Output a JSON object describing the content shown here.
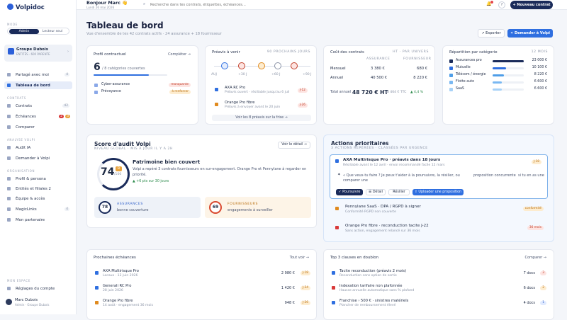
{
  "app": {
    "name": "Volpidoc"
  },
  "sidebar": {
    "mode_label": "MODE",
    "mode_admin": "Admin",
    "mode_reader": "Lecteur seul",
    "group": {
      "name": "Groupe Dubois",
      "sub": "ENTITÉS · 600 PARENTE"
    },
    "items_top": [
      {
        "label": "Partagé avec moi",
        "count": "4"
      },
      {
        "label": "Tableau de bord",
        "count": ""
      }
    ],
    "section_contracts": "CONTRATS",
    "contracts": [
      {
        "label": "Contrats",
        "count": "42"
      },
      {
        "label": "Échéances",
        "badge1": "2",
        "badge2": "3"
      },
      {
        "label": "Comparer",
        "count": ""
      }
    ],
    "section_volpi": "ANALYSE VOLPI",
    "volpi": [
      {
        "label": "Audit IA"
      },
      {
        "label": "Demander à Volpi"
      }
    ],
    "section_org": "ORGANISATION",
    "org": [
      {
        "label": "Profil & persona",
        "count": ""
      },
      {
        "label": "Entités et filiales 2",
        "count": ""
      },
      {
        "label": "Équipe & accès",
        "count": ""
      },
      {
        "label": "MagicLinks",
        "count": "4"
      },
      {
        "label": "Mon partenaire",
        "count": ""
      }
    ],
    "section_space": "MON ESPACE",
    "settings": "Réglages du compte",
    "user": {
      "name": "Marc Dubois",
      "role": "Admin · Groupe Dubois"
    }
  },
  "topbar": {
    "greeting": "Bonjour Marc 👋",
    "date": "Lundi 26 mai 2026",
    "search_placeholder": "Recherche dans tes contrats, étiquettes, échéances…",
    "help": "?",
    "new_contract": "+ Nouveau contrat"
  },
  "page": {
    "title": "Tableau de bord",
    "subtitle": "Vue d'ensemble de tes 42 contrats actifs · 24 assurance + 18 fournisseur",
    "export": "↗ Exporter",
    "ask_volpi": "✦ Demander à Volpi"
  },
  "profile_card": {
    "title": "Profil contractuel",
    "link": "Compléter →",
    "count": "6",
    "count_label": "/ 8 catégories couvertes",
    "progress": 0.75,
    "tags": [
      {
        "name": "Cyber-assurance",
        "status": "manquante"
      },
      {
        "name": "Prévoyance",
        "status": "à renforcer"
      }
    ]
  },
  "upcoming_card": {
    "title": "Préavis à venir",
    "period": "90 PROCHAINS JOURS",
    "timeline": [
      "AUJ",
      "+30 J",
      "+60 J",
      "+90 J"
    ],
    "items": [
      {
        "name": "AXA RC Pro",
        "desc": "Préavis ouvert · résiliable jusqu'au 6 juil",
        "tag": "J-12"
      },
      {
        "name": "Orange Pro fibre",
        "desc": "Préavis à envoyer avant le 20 juin",
        "tag": "J-26"
      }
    ],
    "link": "Voir les 8 préavis sur la frise →"
  },
  "cost_card": {
    "title": "Coût des contrats",
    "columns": [
      "HT · PAR UNIVERS",
      "ASSURANCE",
      "FOURNISSEUR"
    ],
    "rows": [
      {
        "label": "Mensuel",
        "a": "3 380 €",
        "b": "680 €"
      },
      {
        "label": "Annuel",
        "a": "40 500 €",
        "b": "8 220 €"
      }
    ],
    "total_label": "Total annuel",
    "total": "48 720 € HT",
    "total_ttc": "58 464 € TTC",
    "delta": "▲ 4,4 %"
  },
  "split_card": {
    "title": "Répartition par catégorie",
    "period": "12 MOIS",
    "rows": [
      {
        "label": "Assurances pro",
        "value": "23 000 €",
        "ratio": 1.0,
        "color": "#1a2b5a"
      },
      {
        "label": "Mutuelle",
        "value": "10 100 €",
        "ratio": 0.44,
        "color": "#2f6fe0"
      },
      {
        "label": "Télécom / énergie",
        "value": "8 220 €",
        "ratio": 0.36,
        "color": "#4f9ee8"
      },
      {
        "label": "Flotte auto",
        "value": "6 600 €",
        "ratio": 0.29,
        "color": "#7ab8f2"
      },
      {
        "label": "SaaS",
        "value": "6 600 €",
        "ratio": 0.29,
        "color": "#a8d2f7"
      }
    ]
  },
  "audit_card": {
    "title": "Score d'audit Volpi",
    "sub": "NIVEAU GLOBAL · MIS À JOUR IL Y A 2H",
    "link": "Voir le détail →",
    "score": "74",
    "score_max": "/100",
    "score_badge": "B",
    "headline": "Patrimoine bien couvert",
    "text": "Volpi a repéré 3 contrats fournisseurs en sur-engagement. Orange Pro et Pennylane à regarder en priorité.",
    "trend": "▲ +6 pts sur 30 jours",
    "subs": [
      {
        "score": "78",
        "label": "ASSURANCES",
        "desc": "bonne couverture"
      },
      {
        "score": "69",
        "label": "FOURNISSEURS",
        "desc": "engagements à surveiller"
      }
    ]
  },
  "actions_card": {
    "title": "Actions prioritaires",
    "sub": "3 ACTIONS REPÉRÉES · CLASSÉES PAR URGENCE",
    "main": {
      "name": "AXA Multirisque Pro · préavis dans 18 jours",
      "desc": "Résiliable avant le 12 avril · envoi recommandé facile 12 mars",
      "tag": "J-18",
      "question": "« Que veux-tu faire ? Je peux t'aider à la poursuivre, la résilier, ou comparer une",
      "col2": "proposition concurrente",
      "col3": "si tu en as une",
      "buttons": [
        "✓ Poursuivre",
        "☰ Détail",
        "Résilier",
        "⇪ Uploader une proposition"
      ]
    },
    "items": [
      {
        "name": "Pennylane SaaS · DPA / RGPD à signer",
        "desc": "Conformité RGPD non couverte",
        "tag": "conformité"
      },
      {
        "name": "Orange Pro fibre · reconduction tacite J-22",
        "desc": "Sans action, engagement relancé sur 36 mois",
        "tag": "36 mois"
      }
    ]
  },
  "due_card": {
    "title": "Prochaines échéances",
    "link": "Tout voir →",
    "items": [
      {
        "name": "AXA Multirisque Pro",
        "desc": "Locaux · 12 juin 2026",
        "amount": "2 980 €",
        "tag": "J-18"
      },
      {
        "name": "Generali RC Pro",
        "desc": "28 juin 2026",
        "amount": "1 420 €",
        "tag": "J-34"
      },
      {
        "name": "Orange Pro fibre",
        "desc": "14 août · engagement 36 mois",
        "amount": "948 €",
        "tag": "J-26"
      }
    ]
  },
  "clauses_card": {
    "title": "Top 3 clauses en doublon",
    "link": "Comparer →",
    "items": [
      {
        "name": "Tacite reconduction (préavis 2 mois)",
        "desc": "Reconduction sans option de sortie",
        "docs": "7 docs",
        "tag": "3"
      },
      {
        "name": "Indexation tarifaire non plafonnée",
        "desc": "Hausse annuelle automatique sans % plafond",
        "docs": "6 docs",
        "tag": "2"
      },
      {
        "name": "Franchise › 500 € · sinistres matériels",
        "desc": "Plancher de remboursement élevé",
        "docs": "4 docs",
        "tag": "1"
      }
    ]
  }
}
